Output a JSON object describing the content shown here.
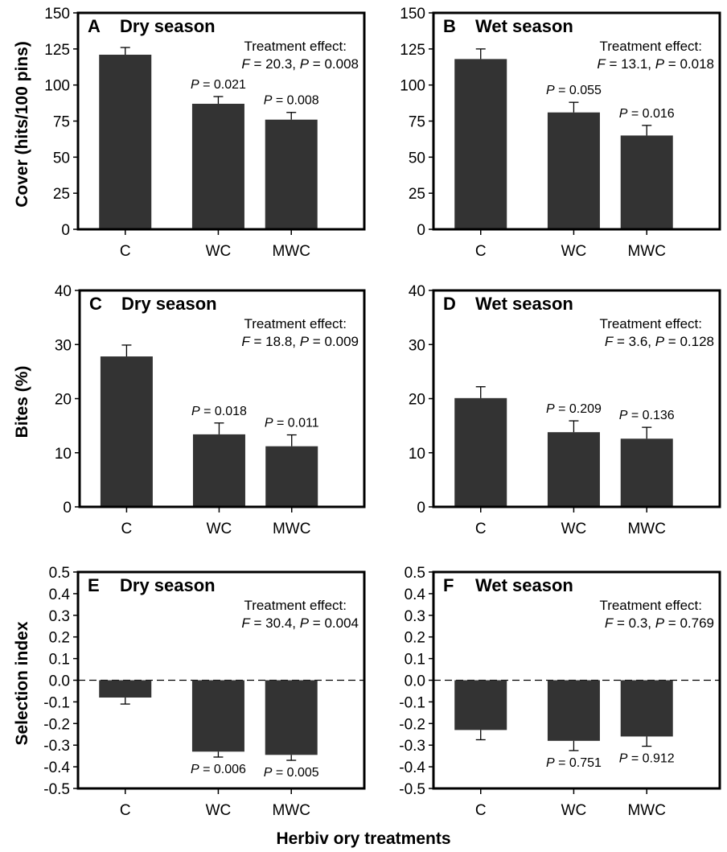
{
  "figure": {
    "xlabel": "Herbiv ory treatments"
  },
  "colors": {
    "bar": "#333333",
    "axis": "#000000",
    "zeroline": "#000000"
  },
  "chart_data": [
    {
      "type": "bar",
      "id": "A",
      "letter": "A",
      "season": "Dry season",
      "ylabel": "Cover (hits/100 pins)",
      "ylim": [
        0,
        150
      ],
      "yticks": [
        "0",
        "25",
        "50",
        "75",
        "100",
        "125",
        "150"
      ],
      "categories": [
        "C",
        "WC",
        "MWC"
      ],
      "values": [
        121,
        87,
        76
      ],
      "errors": [
        5,
        5,
        5
      ],
      "p_labels": [
        "",
        "P = 0.021",
        "P = 0.008"
      ],
      "effect_title": "Treatment effect:",
      "effect_stats": "F = 20.3, P = 0.008"
    },
    {
      "type": "bar",
      "id": "B",
      "letter": "B",
      "season": "Wet season",
      "ylabel": "",
      "ylim": [
        0,
        150
      ],
      "yticks": [
        "0",
        "25",
        "50",
        "75",
        "100",
        "125",
        "150"
      ],
      "categories": [
        "C",
        "WC",
        "MWC"
      ],
      "values": [
        118,
        81,
        65
      ],
      "errors": [
        7,
        7,
        7
      ],
      "p_labels": [
        "",
        "P = 0.055",
        "P = 0.016"
      ],
      "effect_title": "Treatment effect:",
      "effect_stats": "F = 13.1, P = 0.018"
    },
    {
      "type": "bar",
      "id": "C",
      "letter": "C",
      "season": "Dry season",
      "ylabel": "Bites (%)",
      "ylim": [
        0,
        40
      ],
      "yticks": [
        "0",
        "10",
        "20",
        "30",
        "40"
      ],
      "categories": [
        "C",
        "WC",
        "MWC"
      ],
      "values": [
        27.8,
        13.4,
        11.2
      ],
      "errors": [
        2.1,
        2.1,
        2.1
      ],
      "p_labels": [
        "",
        "P = 0.018",
        "P = 0.011"
      ],
      "effect_title": "Treatment effect:",
      "effect_stats": "F = 18.8, P = 0.009"
    },
    {
      "type": "bar",
      "id": "D",
      "letter": "D",
      "season": "Wet season",
      "ylabel": "",
      "ylim": [
        0,
        40
      ],
      "yticks": [
        "0",
        "10",
        "20",
        "30",
        "40"
      ],
      "categories": [
        "C",
        "WC",
        "MWC"
      ],
      "values": [
        20.1,
        13.8,
        12.6
      ],
      "errors": [
        2.1,
        2.1,
        2.1
      ],
      "p_labels": [
        "",
        "P = 0.209",
        "P = 0.136"
      ],
      "effect_title": "Treatment effect:",
      "effect_stats": "F = 3.6, P = 0.128"
    },
    {
      "type": "bar",
      "id": "E",
      "letter": "E",
      "season": "Dry season",
      "ylabel": "Selection index",
      "ylim": [
        -0.5,
        0.5
      ],
      "yticks": [
        "-0.5",
        "-0.4",
        "-0.3",
        "-0.2",
        "-0.1",
        "0.0",
        "0.1",
        "0.2",
        "0.3",
        "0.4",
        "0.5"
      ],
      "categories": [
        "C",
        "WC",
        "MWC"
      ],
      "values": [
        -0.08,
        -0.33,
        -0.345
      ],
      "errors": [
        0.03,
        0.025,
        0.025
      ],
      "p_labels": [
        "",
        "P = 0.006",
        "P = 0.005"
      ],
      "effect_title": "Treatment effect:",
      "effect_stats": "F = 30.4, P = 0.004"
    },
    {
      "type": "bar",
      "id": "F",
      "letter": "F",
      "season": "Wet season",
      "ylabel": "",
      "ylim": [
        -0.5,
        0.5
      ],
      "yticks": [
        "-0.5",
        "-0.4",
        "-0.3",
        "-0.2",
        "-0.1",
        "0.0",
        "0.1",
        "0.2",
        "0.3",
        "0.4",
        "0.5"
      ],
      "categories": [
        "C",
        "WC",
        "MWC"
      ],
      "values": [
        -0.23,
        -0.28,
        -0.26
      ],
      "errors": [
        0.045,
        0.045,
        0.045
      ],
      "p_labels": [
        "",
        "P = 0.751",
        "P = 0.912"
      ],
      "effect_title": "Treatment effect:",
      "effect_stats": "F = 0.3, P = 0.769"
    }
  ]
}
